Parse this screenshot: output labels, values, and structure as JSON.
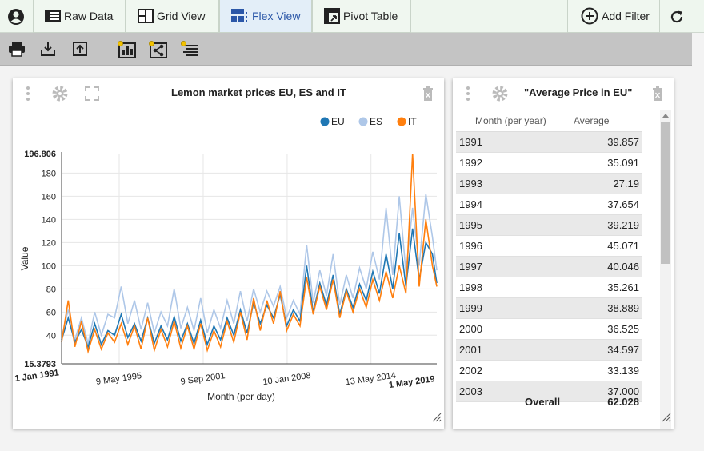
{
  "toolbar": {
    "buttons": [
      {
        "label": "Raw Data",
        "icon": "table-icon"
      },
      {
        "label": "Grid View",
        "icon": "grid-icon"
      },
      {
        "label": "Flex View",
        "icon": "flex-icon"
      },
      {
        "label": "Pivot Table",
        "icon": "pivot-icon"
      }
    ],
    "add_filter": "Add Filter"
  },
  "chart_panel": {
    "title": "Lemon market prices EU, ES and IT"
  },
  "chart_data": {
    "type": "line",
    "title": "Lemon market prices EU, ES and IT",
    "xlabel": "Month (per day)",
    "ylabel": "Value",
    "y_top_label": "196.806",
    "y_bottom_label": "15.3793",
    "ylim": [
      15.3793,
      196.806
    ],
    "y_ticks": [
      40,
      60,
      80,
      100,
      120,
      140,
      160,
      180
    ],
    "x_tick_labels": [
      "1 Jan 1991",
      "9 May 1995",
      "9 Sep 2001",
      "10 Jan 2008",
      "13 May 2014",
      "1 May 2019"
    ],
    "x_tick_years": [
      1991.0,
      1995.35,
      2001.69,
      2008.03,
      2014.36,
      2019.33
    ],
    "xlim": [
      1991.0,
      2019.33
    ],
    "legend": "top-right",
    "grid": true,
    "series": [
      {
        "name": "EU",
        "color": "#1f77b4",
        "x": [
          1991.0,
          1991.5,
          1992.0,
          1992.5,
          1993.0,
          1993.5,
          1994.0,
          1994.5,
          1995.0,
          1995.5,
          1996.0,
          1996.5,
          1997.0,
          1997.5,
          1998.0,
          1998.5,
          1999.0,
          1999.5,
          2000.0,
          2000.5,
          2001.0,
          2001.5,
          2002.0,
          2002.5,
          2003.0,
          2003.5,
          2004.0,
          2004.5,
          2005.0,
          2005.5,
          2006.0,
          2006.5,
          2007.0,
          2007.5,
          2008.0,
          2008.5,
          2009.0,
          2009.5,
          2010.0,
          2010.5,
          2011.0,
          2011.5,
          2012.0,
          2012.5,
          2013.0,
          2013.5,
          2014.0,
          2014.5,
          2015.0,
          2015.5,
          2016.0,
          2016.5,
          2017.0,
          2017.5,
          2018.0,
          2018.5,
          2019.0,
          2019.33
        ],
        "values": [
          36,
          55,
          34,
          45,
          30,
          50,
          32,
          44,
          40,
          58,
          38,
          50,
          35,
          55,
          33,
          48,
          36,
          56,
          35,
          50,
          33,
          53,
          32,
          48,
          36,
          55,
          40,
          62,
          42,
          68,
          50,
          66,
          55,
          75,
          48,
          62,
          52,
          100,
          60,
          85,
          66,
          92,
          58,
          80,
          64,
          84,
          70,
          95,
          76,
          110,
          80,
          128,
          82,
          132,
          88,
          120,
          110,
          85
        ]
      },
      {
        "name": "ES",
        "color": "#aec7e8",
        "x": [
          1991.0,
          1991.5,
          1992.0,
          1992.5,
          1993.0,
          1993.5,
          1994.0,
          1994.5,
          1995.0,
          1995.5,
          1996.0,
          1996.5,
          1997.0,
          1997.5,
          1998.0,
          1998.5,
          1999.0,
          1999.5,
          2000.0,
          2000.5,
          2001.0,
          2001.5,
          2002.0,
          2002.5,
          2003.0,
          2003.5,
          2004.0,
          2004.5,
          2005.0,
          2005.5,
          2006.0,
          2006.5,
          2007.0,
          2007.5,
          2008.0,
          2008.5,
          2009.0,
          2009.5,
          2010.0,
          2010.5,
          2011.0,
          2011.5,
          2012.0,
          2012.5,
          2013.0,
          2013.5,
          2014.0,
          2014.5,
          2015.0,
          2015.5,
          2016.0,
          2016.5,
          2017.0,
          2017.5,
          2018.0,
          2018.5,
          2019.0,
          2019.33
        ],
        "values": [
          38,
          62,
          36,
          55,
          33,
          60,
          40,
          58,
          55,
          82,
          50,
          70,
          45,
          68,
          42,
          60,
          48,
          80,
          46,
          64,
          44,
          72,
          42,
          62,
          46,
          70,
          50,
          78,
          52,
          80,
          60,
          78,
          65,
          82,
          55,
          70,
          58,
          118,
          68,
          96,
          74,
          110,
          66,
          92,
          72,
          98,
          80,
          112,
          88,
          150,
          92,
          160,
          94,
          150,
          100,
          162,
          125,
          96
        ]
      },
      {
        "name": "IT",
        "color": "#ff7f0e",
        "x": [
          1991.0,
          1991.5,
          1992.0,
          1992.5,
          1993.0,
          1993.5,
          1994.0,
          1994.5,
          1995.0,
          1995.5,
          1996.0,
          1996.5,
          1997.0,
          1997.5,
          1998.0,
          1998.5,
          1999.0,
          1999.5,
          2000.0,
          2000.5,
          2001.0,
          2001.5,
          2002.0,
          2002.5,
          2003.0,
          2003.5,
          2004.0,
          2004.5,
          2005.0,
          2005.5,
          2006.0,
          2006.5,
          2007.0,
          2007.5,
          2008.0,
          2008.5,
          2009.0,
          2009.5,
          2010.0,
          2010.5,
          2011.0,
          2011.5,
          2012.0,
          2012.5,
          2013.0,
          2013.5,
          2014.0,
          2014.5,
          2015.0,
          2015.5,
          2016.0,
          2016.5,
          2017.0,
          2017.5,
          2018.0,
          2018.5,
          2019.0,
          2019.33
        ],
        "values": [
          34,
          70,
          30,
          52,
          26,
          45,
          28,
          42,
          34,
          50,
          32,
          48,
          28,
          55,
          27,
          45,
          30,
          52,
          29,
          48,
          28,
          50,
          27,
          44,
          30,
          52,
          34,
          60,
          36,
          72,
          44,
          70,
          50,
          78,
          44,
          58,
          48,
          90,
          58,
          82,
          62,
          88,
          55,
          78,
          60,
          80,
          64,
          88,
          70,
          95,
          72,
          100,
          76,
          196.806,
          82,
          140,
          100,
          82
        ]
      }
    ]
  },
  "table_panel": {
    "title": "\"Average Price in EU\"",
    "col_month": "Month (per year)",
    "col_avg": "Average",
    "rows": [
      {
        "year": "1991",
        "avg": "39.857"
      },
      {
        "year": "1992",
        "avg": "35.091"
      },
      {
        "year": "1993",
        "avg": "27.19"
      },
      {
        "year": "1994",
        "avg": "37.654"
      },
      {
        "year": "1995",
        "avg": "39.219"
      },
      {
        "year": "1996",
        "avg": "45.071"
      },
      {
        "year": "1997",
        "avg": "40.046"
      },
      {
        "year": "1998",
        "avg": "35.261"
      },
      {
        "year": "1999",
        "avg": "38.889"
      },
      {
        "year": "2000",
        "avg": "36.525"
      },
      {
        "year": "2001",
        "avg": "34.597"
      },
      {
        "year": "2002",
        "avg": "33.139"
      },
      {
        "year": "2003",
        "avg": "37.000"
      }
    ],
    "overall_label": "Overall",
    "overall_value": "62.028"
  }
}
